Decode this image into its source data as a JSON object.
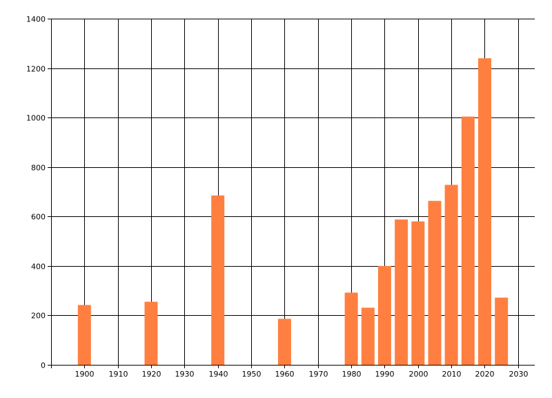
{
  "chart_data": {
    "type": "bar",
    "x": [
      1900,
      1920,
      1940,
      1960,
      1980,
      1985,
      1990,
      1995,
      2000,
      2005,
      2010,
      2015,
      2020,
      2025
    ],
    "values": [
      242,
      255,
      685,
      186,
      292,
      231,
      400,
      588,
      580,
      663,
      728,
      1004,
      1240,
      272
    ],
    "xlim": [
      1890,
      2035
    ],
    "ylim": [
      0,
      1400
    ],
    "x_ticks": [
      1900,
      1910,
      1920,
      1930,
      1940,
      1950,
      1960,
      1970,
      1980,
      1990,
      2000,
      2010,
      2020,
      2030
    ],
    "x_tick_labels": [
      "1900",
      "1910",
      "1920",
      "1930",
      "1940",
      "1950",
      "1960",
      "1970",
      "1980",
      "1990",
      "2000",
      "2010",
      "2020",
      "2030"
    ],
    "y_ticks": [
      0,
      200,
      400,
      600,
      800,
      1000,
      1200,
      1400
    ],
    "y_tick_labels": [
      "0",
      "200",
      "400",
      "600",
      "800",
      "1000",
      "1200",
      "1400"
    ],
    "title": "",
    "xlabel": "",
    "ylabel": "",
    "grid": true,
    "colors": {
      "bar": "#ff7f41",
      "grid": "#000000",
      "axis": "#000000",
      "background": "#ffffff"
    }
  }
}
